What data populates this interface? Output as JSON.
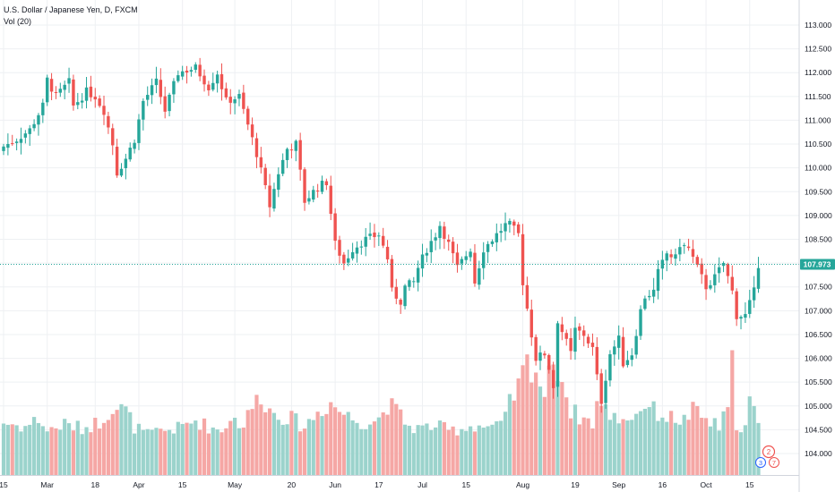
{
  "legend": {
    "title": "U.S. Dollar / Japanese Yen, D, FXCM",
    "volume": "Vol (20)"
  },
  "last_price_label": "107.973",
  "badges": {
    "two": "2",
    "three": "3",
    "seven": "7"
  },
  "colors": {
    "up": "#26a69a",
    "down": "#ef5350",
    "up_vol": "#9bd3cc",
    "down_vol": "#f5a7a5",
    "price_line": "#26a69a",
    "grid": "#eef0f3"
  },
  "chart_data": {
    "type": "candlestick",
    "title": "U.S. Dollar / Japanese Yen, D, FXCM",
    "y_ticks": [
      "113.000",
      "112.500",
      "112.000",
      "111.500",
      "111.000",
      "110.500",
      "110.000",
      "109.500",
      "109.000",
      "108.500",
      "108.000",
      "107.500",
      "107.000",
      "106.500",
      "106.000",
      "105.500",
      "105.000",
      "104.500",
      "104.000"
    ],
    "ylim": [
      103.85,
      113.15
    ],
    "x_ticks": [
      {
        "label": "15",
        "index": 0
      },
      {
        "label": "Mar",
        "index": 10
      },
      {
        "label": "18",
        "index": 21
      },
      {
        "label": "Apr",
        "index": 31
      },
      {
        "label": "15",
        "index": 41
      },
      {
        "label": "May",
        "index": 53
      },
      {
        "label": "20",
        "index": 66
      },
      {
        "label": "Jun",
        "index": 76
      },
      {
        "label": "17",
        "index": 86
      },
      {
        "label": "Jul",
        "index": 96
      },
      {
        "label": "15",
        "index": 106
      },
      {
        "label": "Aug",
        "index": 119
      },
      {
        "label": "19",
        "index": 131
      },
      {
        "label": "Sep",
        "index": 141
      },
      {
        "label": "16",
        "index": 151
      },
      {
        "label": "Oct",
        "index": 161
      },
      {
        "label": "15",
        "index": 171
      }
    ],
    "close_path": [
      [
        0,
        110.45
      ],
      [
        3,
        110.6
      ],
      [
        6,
        110.8
      ],
      [
        9,
        111.3
      ],
      [
        10,
        111.85
      ],
      [
        12,
        111.5
      ],
      [
        15,
        111.8
      ],
      [
        16,
        111.3
      ],
      [
        19,
        111.6
      ],
      [
        21,
        111.5
      ],
      [
        23,
        111.2
      ],
      [
        25,
        110.5
      ],
      [
        26,
        109.9
      ],
      [
        28,
        110.2
      ],
      [
        30,
        110.6
      ],
      [
        32,
        111.4
      ],
      [
        35,
        111.8
      ],
      [
        37,
        111.2
      ],
      [
        40,
        112.0
      ],
      [
        44,
        112.1
      ],
      [
        47,
        111.7
      ],
      [
        49,
        112.0
      ],
      [
        51,
        111.4
      ],
      [
        54,
        111.5
      ],
      [
        56,
        110.9
      ],
      [
        58,
        110.3
      ],
      [
        61,
        109.2
      ],
      [
        63,
        109.9
      ],
      [
        65,
        110.4
      ],
      [
        67,
        110.5
      ],
      [
        69,
        109.3
      ],
      [
        72,
        109.6
      ],
      [
        74,
        109.7
      ],
      [
        76,
        108.4
      ],
      [
        78,
        108.0
      ],
      [
        80,
        108.3
      ],
      [
        83,
        108.5
      ],
      [
        86,
        108.6
      ],
      [
        88,
        108.1
      ],
      [
        89,
        107.4
      ],
      [
        91,
        107.2
      ],
      [
        92,
        107.5
      ],
      [
        94,
        107.6
      ],
      [
        95,
        107.9
      ],
      [
        97,
        108.3
      ],
      [
        99,
        108.6
      ],
      [
        100,
        108.8
      ],
      [
        102,
        108.4
      ],
      [
        104,
        107.9
      ],
      [
        107,
        108.3
      ],
      [
        108,
        107.6
      ],
      [
        110,
        108.3
      ],
      [
        113,
        108.6
      ],
      [
        115,
        108.8
      ],
      [
        116,
        108.8
      ],
      [
        118,
        108.6
      ],
      [
        119,
        107.6
      ],
      [
        121,
        106.5
      ],
      [
        122,
        106.0
      ],
      [
        124,
        106.1
      ],
      [
        125,
        105.8
      ],
      [
        126,
        105.4
      ],
      [
        127,
        106.8
      ],
      [
        130,
        106.1
      ],
      [
        131,
        106.6
      ],
      [
        133,
        106.5
      ],
      [
        135,
        106.2
      ],
      [
        136,
        105.6
      ],
      [
        137,
        105.1
      ],
      [
        139,
        106.1
      ],
      [
        141,
        106.4
      ],
      [
        142,
        105.9
      ],
      [
        144,
        106.1
      ],
      [
        146,
        107.0
      ],
      [
        147,
        107.3
      ],
      [
        149,
        107.4
      ],
      [
        150,
        107.8
      ],
      [
        152,
        108.2
      ],
      [
        154,
        108.1
      ],
      [
        155,
        108.4
      ],
      [
        157,
        108.3
      ],
      [
        159,
        107.9
      ],
      [
        161,
        107.5
      ],
      [
        163,
        107.7
      ],
      [
        165,
        108.0
      ],
      [
        167,
        107.4
      ],
      [
        168,
        106.9
      ],
      [
        170,
        106.9
      ],
      [
        172,
        107.4
      ],
      [
        173,
        107.98
      ]
    ],
    "volume_path": [
      [
        0,
        65
      ],
      [
        5,
        60
      ],
      [
        8,
        70
      ],
      [
        10,
        55
      ],
      [
        14,
        63
      ],
      [
        18,
        58
      ],
      [
        22,
        66
      ],
      [
        25,
        85
      ],
      [
        28,
        80
      ],
      [
        30,
        60
      ],
      [
        33,
        50
      ],
      [
        36,
        55
      ],
      [
        40,
        58
      ],
      [
        44,
        68
      ],
      [
        47,
        60
      ],
      [
        50,
        55
      ],
      [
        52,
        72
      ],
      [
        55,
        62
      ],
      [
        57,
        85
      ],
      [
        59,
        100
      ],
      [
        61,
        80
      ],
      [
        63,
        75
      ],
      [
        66,
        70
      ],
      [
        69,
        60
      ],
      [
        72,
        78
      ],
      [
        75,
        90
      ],
      [
        77,
        80
      ],
      [
        80,
        70
      ],
      [
        83,
        65
      ],
      [
        86,
        70
      ],
      [
        88,
        88
      ],
      [
        90,
        80
      ],
      [
        93,
        60
      ],
      [
        96,
        58
      ],
      [
        99,
        62
      ],
      [
        102,
        55
      ],
      [
        105,
        58
      ],
      [
        108,
        62
      ],
      [
        111,
        60
      ],
      [
        114,
        60
      ],
      [
        116,
        88
      ],
      [
        118,
        110
      ],
      [
        120,
        140
      ],
      [
        122,
        130
      ],
      [
        124,
        100
      ],
      [
        125,
        120
      ],
      [
        126,
        150
      ],
      [
        128,
        118
      ],
      [
        130,
        80
      ],
      [
        133,
        70
      ],
      [
        135,
        65
      ],
      [
        136,
        90
      ],
      [
        138,
        80
      ],
      [
        140,
        72
      ],
      [
        142,
        70
      ],
      [
        145,
        75
      ],
      [
        147,
        90
      ],
      [
        149,
        80
      ],
      [
        152,
        72
      ],
      [
        154,
        70
      ],
      [
        156,
        68
      ],
      [
        158,
        80
      ],
      [
        160,
        72
      ],
      [
        162,
        65
      ],
      [
        164,
        60
      ],
      [
        165,
        70
      ],
      [
        166,
        78
      ],
      [
        167,
        150
      ],
      [
        168,
        65
      ],
      [
        170,
        58
      ],
      [
        171,
        95
      ],
      [
        173,
        60
      ]
    ],
    "volume_marker": {
      "index": 167,
      "value": 155
    }
  }
}
